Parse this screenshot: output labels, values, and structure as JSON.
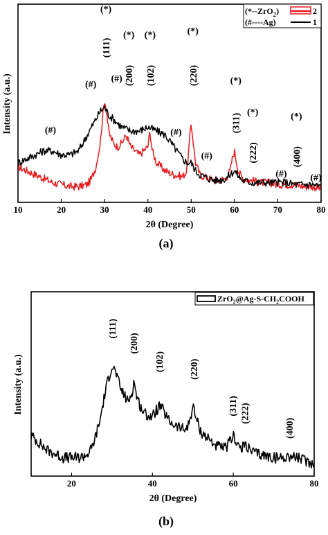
{
  "chart_data": [
    {
      "panel_label": "(a)",
      "type": "line",
      "xlabel": "2θ (Degree)",
      "ylabel": "Intensity (a.u.)",
      "xlim": [
        10,
        80
      ],
      "ylim": [
        0,
        100
      ],
      "x_ticks": [
        "10",
        "20",
        "30",
        "40",
        "50",
        "60",
        "70",
        "80"
      ],
      "grid": false,
      "legend_position": "top-right",
      "legend": [
        {
          "label": "(*--ZrO",
          "sub": "2",
          "label_end": ")",
          "series_number": "2",
          "color": "#e8191c"
        },
        {
          "label": "(#----Ag)",
          "sub": "",
          "label_end": "",
          "series_number": "1",
          "color": "#000000"
        }
      ],
      "series": [
        {
          "id": "2",
          "color": "#e8191c",
          "x": [
            10,
            12,
            14,
            16,
            18,
            20,
            22,
            24,
            26,
            27,
            28,
            29,
            29.5,
            30,
            30.5,
            31,
            32,
            33,
            34,
            35,
            36,
            38,
            39,
            40,
            40.5,
            41,
            42,
            44,
            46,
            48,
            49,
            49.5,
            50,
            50.5,
            51,
            52,
            54,
            56,
            58,
            59,
            59.5,
            60,
            60.5,
            61,
            62,
            64,
            66,
            68,
            70,
            72,
            74,
            76,
            78,
            80
          ],
          "y": [
            18,
            16,
            14,
            12,
            10,
            9,
            8,
            8,
            9,
            12,
            18,
            30,
            42,
            52,
            45,
            35,
            30,
            28,
            30,
            34,
            28,
            24,
            26,
            28,
            36,
            26,
            20,
            16,
            14,
            13,
            16,
            28,
            40,
            30,
            20,
            14,
            12,
            11,
            12,
            16,
            22,
            26,
            20,
            15,
            12,
            11,
            10,
            10,
            9,
            9,
            9,
            8,
            8,
            7
          ]
        },
        {
          "id": "1",
          "color": "#000000",
          "x": [
            10,
            12,
            14,
            16,
            18,
            20,
            22,
            24,
            26,
            27,
            28,
            29,
            30,
            31,
            32,
            33,
            34,
            36,
            38,
            40,
            42,
            44,
            46,
            48,
            49,
            50,
            51,
            52,
            54,
            56,
            58,
            59,
            60,
            61,
            62,
            64,
            66,
            68,
            70,
            72,
            74,
            76,
            78,
            80
          ],
          "y": [
            20,
            22,
            24,
            26,
            26,
            24,
            24,
            26,
            34,
            38,
            42,
            46,
            48,
            44,
            42,
            40,
            38,
            36,
            36,
            38,
            36,
            34,
            28,
            22,
            20,
            20,
            16,
            14,
            12,
            11,
            12,
            14,
            16,
            13,
            11,
            10,
            10,
            10,
            10,
            10,
            9,
            9,
            9,
            8
          ]
        }
      ],
      "annotations": [
        {
          "text": "(#)",
          "x": 17.5,
          "y": 35,
          "rotate": false
        },
        {
          "text": "(#)",
          "x": 26.8,
          "y": 58,
          "rotate": false
        },
        {
          "text": "(*)",
          "x": 30.3,
          "y": 96,
          "rotate": false
        },
        {
          "text": "(111)",
          "x": 30.3,
          "y": 78,
          "rotate": true
        },
        {
          "text": "(#)",
          "x": 32.8,
          "y": 61,
          "rotate": false
        },
        {
          "text": "(*)",
          "x": 35.6,
          "y": 83,
          "rotate": false
        },
        {
          "text": "(200)",
          "x": 35.6,
          "y": 64,
          "rotate": true
        },
        {
          "text": "(*)",
          "x": 40.5,
          "y": 83,
          "rotate": false
        },
        {
          "text": "(102)",
          "x": 40.5,
          "y": 64,
          "rotate": true
        },
        {
          "text": "(#)",
          "x": 46.5,
          "y": 34,
          "rotate": false
        },
        {
          "text": "(*)",
          "x": 50.4,
          "y": 85,
          "rotate": false
        },
        {
          "text": "(220)",
          "x": 50.4,
          "y": 64,
          "rotate": true
        },
        {
          "text": "(#)",
          "x": 53.6,
          "y": 22,
          "rotate": false
        },
        {
          "text": "(*)",
          "x": 60.3,
          "y": 60,
          "rotate": false
        },
        {
          "text": "(311)",
          "x": 60.3,
          "y": 40,
          "rotate": true
        },
        {
          "text": "(*)",
          "x": 64.2,
          "y": 44,
          "rotate": false
        },
        {
          "text": "(222)",
          "x": 64.2,
          "y": 25,
          "rotate": true
        },
        {
          "text": "(#)",
          "x": 70.8,
          "y": 13,
          "rotate": false
        },
        {
          "text": "(*)",
          "x": 74.3,
          "y": 42,
          "rotate": false
        },
        {
          "text": "(400)",
          "x": 74.3,
          "y": 23,
          "rotate": true
        },
        {
          "text": "(#)",
          "x": 78.8,
          "y": 11,
          "rotate": false
        }
      ]
    },
    {
      "panel_label": "(b)",
      "type": "line",
      "xlabel": "2θ (Degree)",
      "ylabel": "Intensity (a.u.)",
      "xlim": [
        10,
        80
      ],
      "ylim": [
        0,
        100
      ],
      "x_ticks": [
        "20",
        "40",
        "60",
        "80"
      ],
      "grid": false,
      "legend_position": "top-right",
      "legend": [
        {
          "label": "ZrO",
          "sub": "2",
          "label_mid": "@Ag-S-CH",
          "sub2": "2",
          "label_end": "COOH",
          "color": "#000000"
        }
      ],
      "series": [
        {
          "id": "ZrO2@Ag-S-CH2COOH",
          "color": "#000000",
          "x": [
            10,
            12,
            14,
            16,
            18,
            20,
            22,
            24,
            25,
            26,
            27,
            28,
            29,
            30,
            31,
            32,
            33,
            34,
            35,
            35.5,
            36,
            37,
            38,
            40,
            41,
            42,
            43,
            44,
            46,
            48,
            49,
            50,
            51,
            52,
            54,
            56,
            58,
            59,
            60,
            61,
            62,
            63,
            64,
            66,
            68,
            70,
            72,
            74,
            76,
            78,
            80
          ],
          "y": [
            22,
            18,
            14,
            12,
            10,
            10,
            10,
            12,
            15,
            22,
            30,
            42,
            52,
            60,
            56,
            48,
            44,
            40,
            46,
            52,
            44,
            38,
            34,
            32,
            36,
            38,
            34,
            30,
            27,
            25,
            28,
            38,
            30,
            24,
            20,
            16,
            15,
            18,
            22,
            18,
            14,
            18,
            14,
            12,
            11,
            10,
            10,
            11,
            10,
            8,
            7
          ]
        }
      ],
      "annotations": [
        {
          "text": "(111)",
          "x": 30,
          "y": 80,
          "rotate": true
        },
        {
          "text": "(200)",
          "x": 35.3,
          "y": 72,
          "rotate": true
        },
        {
          "text": "(102)",
          "x": 41.7,
          "y": 62,
          "rotate": true
        },
        {
          "text": "(220)",
          "x": 50.2,
          "y": 58,
          "rotate": true
        },
        {
          "text": "(311)",
          "x": 59.8,
          "y": 38,
          "rotate": true
        },
        {
          "text": "(222)",
          "x": 62.8,
          "y": 34,
          "rotate": true
        },
        {
          "text": "(400)",
          "x": 73.8,
          "y": 26,
          "rotate": true
        }
      ]
    }
  ]
}
